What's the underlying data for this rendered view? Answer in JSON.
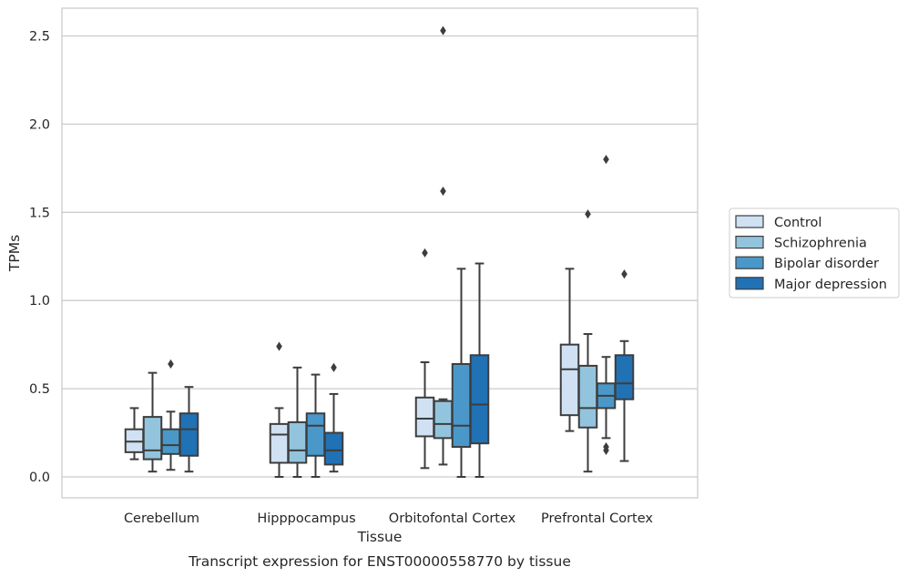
{
  "chart_data": {
    "type": "box",
    "xlabel": "Tissue",
    "ylabel": "TPMs",
    "caption": "Transcript expression for ENST00000558770 by tissue",
    "ylim": [
      -0.12,
      2.66
    ],
    "yticks": [
      0.0,
      0.5,
      1.0,
      1.5,
      2.0,
      2.5
    ],
    "ytick_labels": [
      "0.0",
      "0.5",
      "1.0",
      "1.5",
      "2.0",
      "2.5"
    ],
    "grid": true,
    "legend_position": "right",
    "categories": [
      "Cerebellum",
      "Hipppocampus",
      "Orbitofontal Cortex",
      "Prefrontal Cortex"
    ],
    "series": [
      {
        "name": "Control",
        "color": "#cfe1f2",
        "boxes": [
          {
            "whislo": 0.1,
            "q1": 0.14,
            "med": 0.2,
            "q3": 0.27,
            "whishi": 0.39,
            "fliers": []
          },
          {
            "whislo": 0.0,
            "q1": 0.08,
            "med": 0.24,
            "q3": 0.3,
            "whishi": 0.39,
            "fliers": [
              0.74
            ]
          },
          {
            "whislo": 0.05,
            "q1": 0.23,
            "med": 0.33,
            "q3": 0.45,
            "whishi": 0.65,
            "fliers": [
              1.27
            ]
          },
          {
            "whislo": 0.26,
            "q1": 0.35,
            "med": 0.61,
            "q3": 0.75,
            "whishi": 1.18,
            "fliers": []
          }
        ]
      },
      {
        "name": "Schizophrenia",
        "color": "#93c4de",
        "boxes": [
          {
            "whislo": 0.03,
            "q1": 0.1,
            "med": 0.15,
            "q3": 0.34,
            "whishi": 0.59,
            "fliers": []
          },
          {
            "whislo": 0.0,
            "q1": 0.08,
            "med": 0.15,
            "q3": 0.31,
            "whishi": 0.62,
            "fliers": []
          },
          {
            "whislo": 0.07,
            "q1": 0.22,
            "med": 0.3,
            "q3": 0.43,
            "whishi": 0.44,
            "fliers": [
              1.62,
              2.53
            ]
          },
          {
            "whislo": 0.03,
            "q1": 0.28,
            "med": 0.39,
            "q3": 0.63,
            "whishi": 0.81,
            "fliers": [
              1.49
            ]
          }
        ]
      },
      {
        "name": "Bipolar disorder",
        "color": "#4a98c9",
        "boxes": [
          {
            "whislo": 0.04,
            "q1": 0.13,
            "med": 0.18,
            "q3": 0.27,
            "whishi": 0.37,
            "fliers": [
              0.64
            ]
          },
          {
            "whislo": 0.0,
            "q1": 0.12,
            "med": 0.29,
            "q3": 0.36,
            "whishi": 0.58,
            "fliers": []
          },
          {
            "whislo": 0.0,
            "q1": 0.17,
            "med": 0.29,
            "q3": 0.64,
            "whishi": 1.18,
            "fliers": []
          },
          {
            "whislo": 0.22,
            "q1": 0.39,
            "med": 0.46,
            "q3": 0.53,
            "whishi": 0.68,
            "fliers": [
              0.15,
              0.17,
              1.8
            ]
          }
        ]
      },
      {
        "name": "Major depression",
        "color": "#2171b5",
        "boxes": [
          {
            "whislo": 0.03,
            "q1": 0.12,
            "med": 0.27,
            "q3": 0.36,
            "whishi": 0.51,
            "fliers": []
          },
          {
            "whislo": 0.03,
            "q1": 0.07,
            "med": 0.15,
            "q3": 0.25,
            "whishi": 0.47,
            "fliers": [
              0.62
            ]
          },
          {
            "whislo": 0.0,
            "q1": 0.19,
            "med": 0.41,
            "q3": 0.69,
            "whishi": 1.21,
            "fliers": []
          },
          {
            "whislo": 0.09,
            "q1": 0.44,
            "med": 0.53,
            "q3": 0.69,
            "whishi": 0.77,
            "fliers": [
              1.15
            ]
          }
        ]
      }
    ],
    "colors": {
      "stroke": "#3d3d3d",
      "grid": "#cccccc",
      "frame": "#cccccc"
    }
  }
}
